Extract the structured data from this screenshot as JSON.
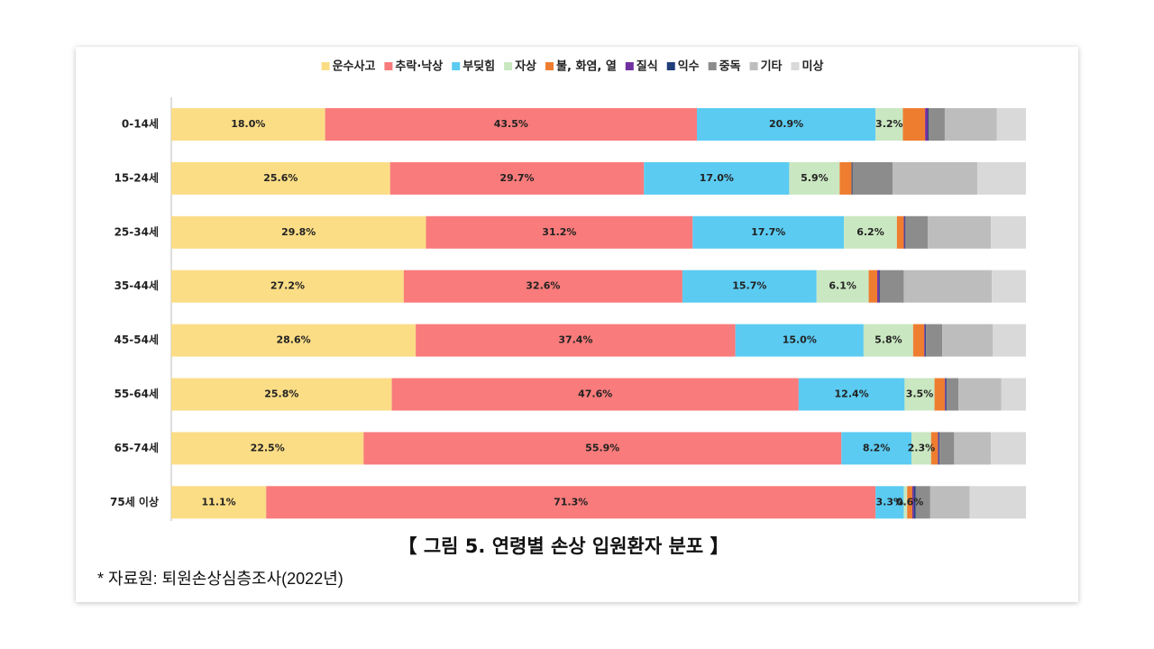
{
  "chart_data": {
    "type": "stacked-bar-horizontal",
    "categories": [
      "0-14세",
      "15-24세",
      "25-34세",
      "35-44세",
      "45-54세",
      "55-64세",
      "65-74세",
      "75세 이상"
    ],
    "xlim": [
      0,
      100
    ],
    "series": [
      {
        "name": "운수사고",
        "color": "#fbdd86",
        "values": [
          18.0,
          25.6,
          29.8,
          27.2,
          28.6,
          25.8,
          22.5,
          11.1
        ],
        "value_labels": [
          "18.0%",
          "25.6%",
          "29.8%",
          "27.2%",
          "28.6%",
          "25.8%",
          "22.5%",
          "11.1%"
        ]
      },
      {
        "name": "추락·낙상",
        "color": "#f97b7b",
        "values": [
          43.5,
          29.7,
          31.2,
          32.6,
          37.4,
          47.6,
          55.9,
          71.3
        ],
        "value_labels": [
          "43.5%",
          "29.7%",
          "31.2%",
          "32.6%",
          "37.4%",
          "47.6%",
          "55.9%",
          "71.3%"
        ]
      },
      {
        "name": "부딪힘",
        "color": "#5bcbf2",
        "values": [
          20.9,
          17.0,
          17.7,
          15.7,
          15.0,
          12.4,
          8.2,
          3.3
        ],
        "value_labels": [
          "20.9%",
          "17.0%",
          "17.7%",
          "15.7%",
          "15.0%",
          "12.4%",
          "8.2%",
          "3.3%"
        ]
      },
      {
        "name": "자상",
        "color": "#c9e7c0",
        "values": [
          3.2,
          5.9,
          6.2,
          6.1,
          5.8,
          3.5,
          2.3,
          0.4
        ],
        "value_labels": [
          "3.2%",
          "5.9%",
          "6.2%",
          "6.1%",
          "5.8%",
          "3.5%",
          "2.3%",
          null
        ]
      },
      {
        "name": "불, 화염, 열",
        "color": "#ee7d2f",
        "values": [
          2.6,
          1.4,
          0.8,
          1.0,
          1.3,
          1.2,
          0.8,
          0.6
        ],
        "value_labels": [
          null,
          null,
          null,
          null,
          null,
          null,
          null,
          "0.6%"
        ]
      },
      {
        "name": "질식",
        "color": "#7030a0",
        "values": [
          0.3,
          0.0,
          0.1,
          0.2,
          0.1,
          0.1,
          0.1,
          0.2
        ]
      },
      {
        "name": "익수",
        "color": "#1f3e7a",
        "values": [
          0.1,
          0.1,
          0.1,
          0.1,
          0.1,
          0.1,
          0.1,
          0.2
        ]
      },
      {
        "name": "중독",
        "color": "#8c8c8c",
        "values": [
          1.9,
          4.7,
          2.6,
          2.8,
          1.9,
          1.4,
          1.7,
          1.7
        ]
      },
      {
        "name": "기타",
        "color": "#bdbdbd",
        "values": [
          6.1,
          9.9,
          7.4,
          10.3,
          5.9,
          5.0,
          4.3,
          4.6
        ]
      },
      {
        "name": "미상",
        "color": "#d9d9d9",
        "values": [
          3.4,
          5.7,
          4.1,
          4.0,
          3.9,
          2.9,
          4.1,
          6.6
        ]
      }
    ],
    "caption": "【 그림 5. 연령별 손상 입원환자 분포 】",
    "source": "* 자료원: 퇴원손상심층조사(2022년)"
  }
}
